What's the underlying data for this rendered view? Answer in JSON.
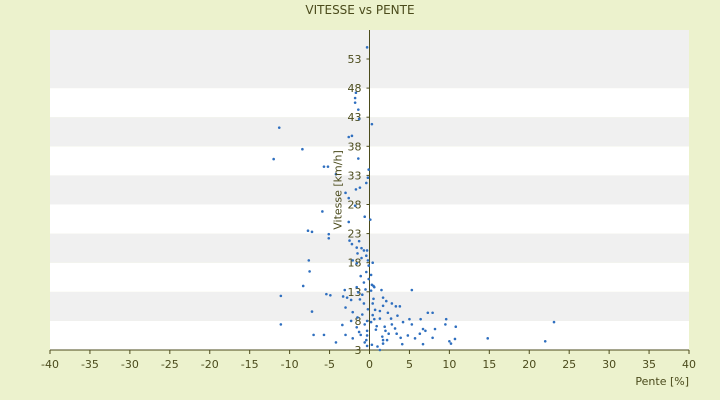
{
  "chart_data": {
    "type": "scatter",
    "title": "VITESSE vs PENTE",
    "xlabel": "Pente [%]",
    "ylabel": "Vitesse [km/h]",
    "xlim": [
      -40,
      40
    ],
    "ylim": [
      3,
      58
    ],
    "xticks": [
      -40,
      -35,
      -30,
      -25,
      -20,
      -15,
      -10,
      -5,
      0,
      5,
      10,
      15,
      20,
      25,
      30,
      35,
      40
    ],
    "yticks": [
      3,
      8,
      13,
      18,
      23,
      28,
      33,
      38,
      43,
      48,
      53
    ],
    "grid": "horizontal alternating bands",
    "legend": "none",
    "colors": {
      "background": "#ecf2cd",
      "band_light": "#ffffff",
      "band_dark": "#f0f0f0",
      "points": "#2f6fbf",
      "text": "#4b4b1c"
    },
    "points": [
      [
        -0.3,
        55.0
      ],
      [
        -1.7,
        47.2
      ],
      [
        -1.8,
        46.3
      ],
      [
        -1.8,
        45.5
      ],
      [
        -1.4,
        44.3
      ],
      [
        -1.3,
        42.7
      ],
      [
        0.3,
        41.8
      ],
      [
        -11.3,
        41.2
      ],
      [
        -2.2,
        39.8
      ],
      [
        -2.6,
        39.6
      ],
      [
        -8.4,
        37.5
      ],
      [
        -12.0,
        35.8
      ],
      [
        -1.4,
        35.9
      ],
      [
        -5.7,
        34.5
      ],
      [
        -5.2,
        34.5
      ],
      [
        -0.1,
        34.0
      ],
      [
        -4.2,
        33.2
      ],
      [
        -0.2,
        32.6
      ],
      [
        -0.4,
        31.7
      ],
      [
        -1.2,
        30.9
      ],
      [
        -1.7,
        30.6
      ],
      [
        -3.0,
        30.0
      ],
      [
        -2.6,
        29.1
      ],
      [
        -1.8,
        27.8
      ],
      [
        -5.9,
        26.8
      ],
      [
        -0.6,
        25.9
      ],
      [
        0.1,
        25.4
      ],
      [
        -2.6,
        25.0
      ],
      [
        -7.7,
        23.5
      ],
      [
        -7.2,
        23.3
      ],
      [
        -5.1,
        22.9
      ],
      [
        -5.1,
        22.2
      ],
      [
        -2.5,
        21.8
      ],
      [
        -1.3,
        21.7
      ],
      [
        -2.2,
        21.2
      ],
      [
        -1.6,
        20.6
      ],
      [
        -1.0,
        20.5
      ],
      [
        -0.7,
        20.1
      ],
      [
        -0.3,
        20.1
      ],
      [
        -1.5,
        19.6
      ],
      [
        -0.4,
        19.2
      ],
      [
        -1.0,
        18.8
      ],
      [
        -2.1,
        18.4
      ],
      [
        -7.6,
        18.4
      ],
      [
        -0.2,
        18.4
      ],
      [
        0.4,
        18.0
      ],
      [
        -1.6,
        17.9
      ],
      [
        -0.1,
        17.5
      ],
      [
        -7.5,
        16.5
      ],
      [
        -0.4,
        16.4
      ],
      [
        -1.1,
        15.7
      ],
      [
        0.2,
        15.9
      ],
      [
        -0.1,
        15.2
      ],
      [
        -0.7,
        14.6
      ],
      [
        0.3,
        14.2
      ],
      [
        0.5,
        14.0
      ],
      [
        -8.3,
        14.0
      ],
      [
        -1.6,
        13.8
      ],
      [
        0.6,
        13.8
      ],
      [
        -0.5,
        13.4
      ],
      [
        -3.1,
        13.3
      ],
      [
        5.3,
        13.3
      ],
      [
        1.5,
        13.3
      ],
      [
        0.2,
        13.2
      ],
      [
        -1.4,
        12.9
      ],
      [
        -5.4,
        12.6
      ],
      [
        -0.9,
        12.5
      ],
      [
        -4.9,
        12.4
      ],
      [
        -3.3,
        12.2
      ],
      [
        -11.1,
        12.3
      ],
      [
        -2.8,
        12.0
      ],
      [
        -2.3,
        11.6
      ],
      [
        -1.2,
        11.7
      ],
      [
        0.5,
        11.8
      ],
      [
        1.7,
        12.0
      ],
      [
        2.1,
        11.4
      ],
      [
        -0.7,
        11.0
      ],
      [
        0.4,
        11.0
      ],
      [
        2.8,
        11.0
      ],
      [
        1.7,
        10.6
      ],
      [
        3.3,
        10.5
      ],
      [
        3.8,
        10.5
      ],
      [
        -3.0,
        10.3
      ],
      [
        -0.2,
        10.0
      ],
      [
        0.7,
        9.9
      ],
      [
        1.3,
        9.7
      ],
      [
        -2.1,
        9.5
      ],
      [
        -7.2,
        9.6
      ],
      [
        7.3,
        9.4
      ],
      [
        7.9,
        9.4
      ],
      [
        2.3,
        9.4
      ],
      [
        -0.9,
        9.1
      ],
      [
        0.4,
        9.0
      ],
      [
        3.5,
        8.9
      ],
      [
        -1.5,
        8.6
      ],
      [
        0.6,
        8.3
      ],
      [
        1.3,
        8.4
      ],
      [
        2.7,
        8.4
      ],
      [
        5.0,
        8.3
      ],
      [
        6.4,
        8.3
      ],
      [
        9.6,
        8.3
      ],
      [
        -0.3,
        8.0
      ],
      [
        -2.3,
        8.0
      ],
      [
        0.2,
        7.8
      ],
      [
        4.2,
        7.8
      ],
      [
        23.1,
        7.8
      ],
      [
        -0.6,
        7.4
      ],
      [
        2.8,
        7.4
      ],
      [
        5.3,
        7.4
      ],
      [
        9.5,
        7.4
      ],
      [
        -11.1,
        7.4
      ],
      [
        -3.4,
        7.3
      ],
      [
        0.9,
        7.1
      ],
      [
        1.9,
        7.0
      ],
      [
        10.8,
        7.0
      ],
      [
        -1.6,
        6.9
      ],
      [
        3.2,
        6.7
      ],
      [
        6.7,
        6.6
      ],
      [
        8.2,
        6.6
      ],
      [
        0.8,
        6.5
      ],
      [
        -0.3,
        6.3
      ],
      [
        2.0,
        6.3
      ],
      [
        7.0,
        6.3
      ],
      [
        -1.3,
        6.1
      ],
      [
        2.4,
        5.8
      ],
      [
        3.4,
        5.8
      ],
      [
        6.3,
        5.8
      ],
      [
        -7.0,
        5.6
      ],
      [
        -5.7,
        5.6
      ],
      [
        -3.0,
        5.6
      ],
      [
        -1.1,
        5.6
      ],
      [
        -0.3,
        5.5
      ],
      [
        4.8,
        5.5
      ],
      [
        1.6,
        5.3
      ],
      [
        7.9,
        5.1
      ],
      [
        3.9,
        5.1
      ],
      [
        14.8,
        5.0
      ],
      [
        10.7,
        4.9
      ],
      [
        5.7,
        5.0
      ],
      [
        -2.1,
        5.0
      ],
      [
        -0.4,
        4.7
      ],
      [
        1.7,
        4.7
      ],
      [
        2.2,
        4.7
      ],
      [
        10.0,
        4.5
      ],
      [
        22.0,
        4.5
      ],
      [
        -4.2,
        4.3
      ],
      [
        -0.6,
        4.3
      ],
      [
        1.7,
        4.1
      ],
      [
        4.1,
        4.0
      ],
      [
        0.3,
        3.9
      ],
      [
        6.7,
        4.0
      ],
      [
        10.2,
        4.1
      ],
      [
        -0.3,
        3.7
      ],
      [
        1.0,
        3.6
      ],
      [
        1.3,
        3.0
      ]
    ]
  }
}
